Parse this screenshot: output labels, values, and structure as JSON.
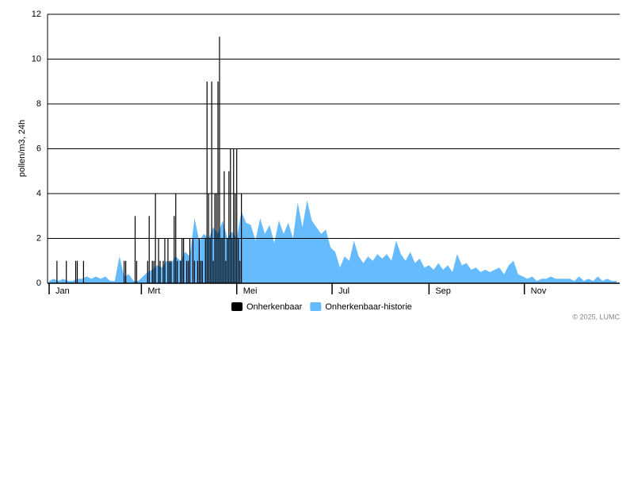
{
  "chart_data": {
    "type": "bar-area",
    "y_label": "pollen/m3, 24h",
    "credit": "© 2025, LUMC",
    "xlim": [
      1,
      366
    ],
    "xticks": [
      {
        "value": 1,
        "label": "Jan"
      },
      {
        "value": 60,
        "label": "Mrt"
      },
      {
        "value": 121,
        "label": "Mei"
      },
      {
        "value": 182,
        "label": "Jul"
      },
      {
        "value": 244,
        "label": "Sep"
      },
      {
        "value": 305,
        "label": "Nov"
      }
    ],
    "ylim": [
      0,
      12
    ],
    "yticks": [
      0,
      2,
      4,
      6,
      8,
      10,
      12
    ],
    "grid": true,
    "series": [
      {
        "name": "Onherkenbaar",
        "color": "#000000",
        "kind": "bar",
        "x": [
          6,
          12,
          18,
          19,
          23,
          49,
          50,
          56,
          57,
          64,
          65,
          67,
          68,
          69,
          71,
          72,
          74,
          75,
          77,
          78,
          79,
          81,
          82,
          83,
          85,
          86,
          87,
          89,
          90,
          91,
          93,
          94,
          96,
          97,
          98,
          99,
          101,
          102,
          103,
          104,
          105,
          106,
          107,
          108,
          109,
          110,
          111,
          112,
          113,
          114,
          115,
          116,
          117,
          118,
          119,
          120,
          121,
          122,
          123,
          124
        ],
        "values": [
          1,
          1,
          1,
          1,
          1,
          1,
          1,
          3,
          1,
          1,
          3,
          1,
          1,
          4,
          2,
          1,
          1,
          2,
          2,
          1,
          1,
          3,
          4,
          1,
          1,
          2,
          2,
          1,
          1,
          2,
          2,
          1,
          1,
          2,
          1,
          1,
          2,
          9,
          4,
          2,
          9,
          1,
          4,
          4,
          9,
          11,
          2,
          2,
          5,
          1,
          2,
          5,
          6,
          2,
          6,
          4,
          6,
          2,
          1,
          4
        ]
      },
      {
        "name": "Onherkenbaar-historie",
        "color": "#66bbff",
        "kind": "area",
        "x": [
          1,
          4,
          7,
          10,
          13,
          16,
          19,
          22,
          25,
          28,
          31,
          34,
          37,
          40,
          43,
          46,
          49,
          52,
          55,
          58,
          61,
          64,
          67,
          70,
          73,
          76,
          79,
          82,
          85,
          88,
          91,
          94,
          97,
          100,
          103,
          106,
          109,
          112,
          115,
          118,
          121,
          124,
          127,
          130,
          133,
          136,
          139,
          142,
          145,
          148,
          151,
          154,
          157,
          160,
          163,
          166,
          169,
          172,
          175,
          178,
          181,
          184,
          187,
          190,
          193,
          196,
          199,
          202,
          205,
          208,
          211,
          214,
          217,
          220,
          223,
          226,
          229,
          232,
          235,
          238,
          241,
          244,
          247,
          250,
          253,
          256,
          259,
          262,
          265,
          268,
          271,
          274,
          277,
          280,
          283,
          286,
          289,
          292,
          295,
          298,
          301,
          304,
          307,
          310,
          313,
          316,
          319,
          322,
          325,
          328,
          331,
          334,
          337,
          340,
          343,
          346,
          349,
          352,
          355,
          358,
          361,
          364
        ],
        "values": [
          0.1,
          0.2,
          0.1,
          0.2,
          0.1,
          0.1,
          0.2,
          0.2,
          0.3,
          0.2,
          0.3,
          0.2,
          0.3,
          0.1,
          0.1,
          1.2,
          0.3,
          0.4,
          0.1,
          0.1,
          0.3,
          0.5,
          0.6,
          0.8,
          0.7,
          1.0,
          0.9,
          1.2,
          1.0,
          1.4,
          1.2,
          2.9,
          1.9,
          2.2,
          2.0,
          2.5,
          2.2,
          2.8,
          2.0,
          2.3,
          2.0,
          3.2,
          2.7,
          2.6,
          1.9,
          2.9,
          2.2,
          2.6,
          1.8,
          2.8,
          2.2,
          2.7,
          2.0,
          3.6,
          2.5,
          3.7,
          2.8,
          2.5,
          2.2,
          2.4,
          1.6,
          1.4,
          0.7,
          1.2,
          1.0,
          1.9,
          1.2,
          0.9,
          1.2,
          1.0,
          1.3,
          1.1,
          1.3,
          1.0,
          1.9,
          1.3,
          1.0,
          1.4,
          0.9,
          1.1,
          0.7,
          0.8,
          0.6,
          0.9,
          0.6,
          0.8,
          0.5,
          1.3,
          0.8,
          0.9,
          0.6,
          0.7,
          0.5,
          0.6,
          0.5,
          0.6,
          0.7,
          0.4,
          0.8,
          1.0,
          0.4,
          0.3,
          0.2,
          0.3,
          0.1,
          0.2,
          0.2,
          0.3,
          0.2,
          0.2,
          0.2,
          0.2,
          0.1,
          0.3,
          0.1,
          0.2,
          0.1,
          0.3,
          0.1,
          0.2,
          0.1,
          0.1
        ]
      }
    ]
  }
}
